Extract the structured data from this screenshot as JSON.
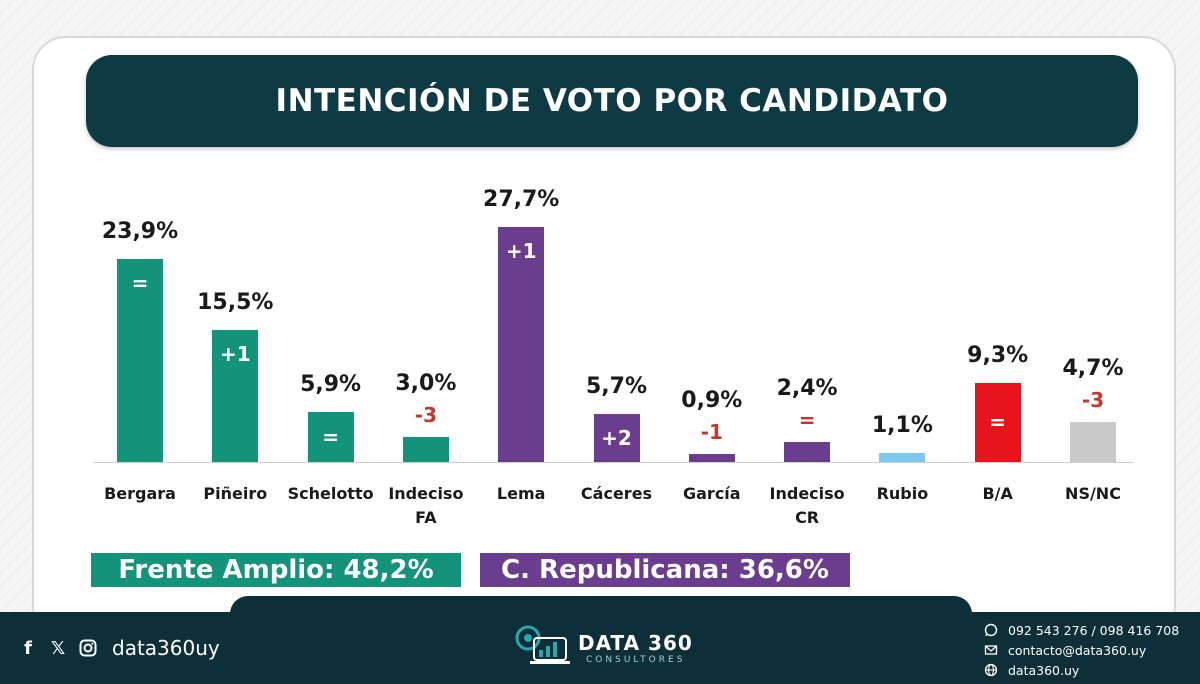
{
  "chart_data": {
    "type": "bar",
    "title": "INTENCIÓN DE VOTO POR CANDIDATO",
    "categories": [
      "Bergara",
      "Piñeiro",
      "Schelotto",
      "Indeciso FA",
      "Lema",
      "Cáceres",
      "García",
      "Indeciso CR",
      "Rubio",
      "B/A",
      "NS/NC"
    ],
    "values": [
      23.9,
      15.5,
      5.9,
      3.0,
      27.7,
      5.7,
      0.9,
      2.4,
      1.1,
      9.3,
      4.7
    ],
    "value_labels": [
      "23,9%",
      "15,5%",
      "5,9%",
      "3,0%",
      "27,7%",
      "5,7%",
      "0,9%",
      "2,4%",
      "1,1%",
      "9,3%",
      "4,7%"
    ],
    "changes": [
      "=",
      "+1",
      "=",
      "-3",
      "+1",
      "+2",
      "-1",
      "=",
      "",
      "=",
      "-3"
    ],
    "colors": [
      "#12937a",
      "#12937a",
      "#12937a",
      "#12937a",
      "#6a3d8e",
      "#6a3d8e",
      "#6a3d8e",
      "#6a3d8e",
      "#7cc8ee",
      "#e8141b",
      "#c9c9c9"
    ],
    "xlabel": "",
    "ylabel": "",
    "grid": false,
    "legend": "none"
  },
  "groups": [
    {
      "label": "Frente Amplio: 48,2%",
      "color": "#12937a"
    },
    {
      "label": "C. Republicana: 36,6%",
      "color": "#6a3d8e"
    }
  ],
  "footer": {
    "social_handle": "data360uy",
    "brand_name": "DATA 360",
    "brand_sub": "CONSULTORES",
    "phone": "092 543 276 / 098 416 708",
    "email": "contacto@data360.uy",
    "website": "data360.uy",
    "accent_color": "#2aa6b0"
  }
}
